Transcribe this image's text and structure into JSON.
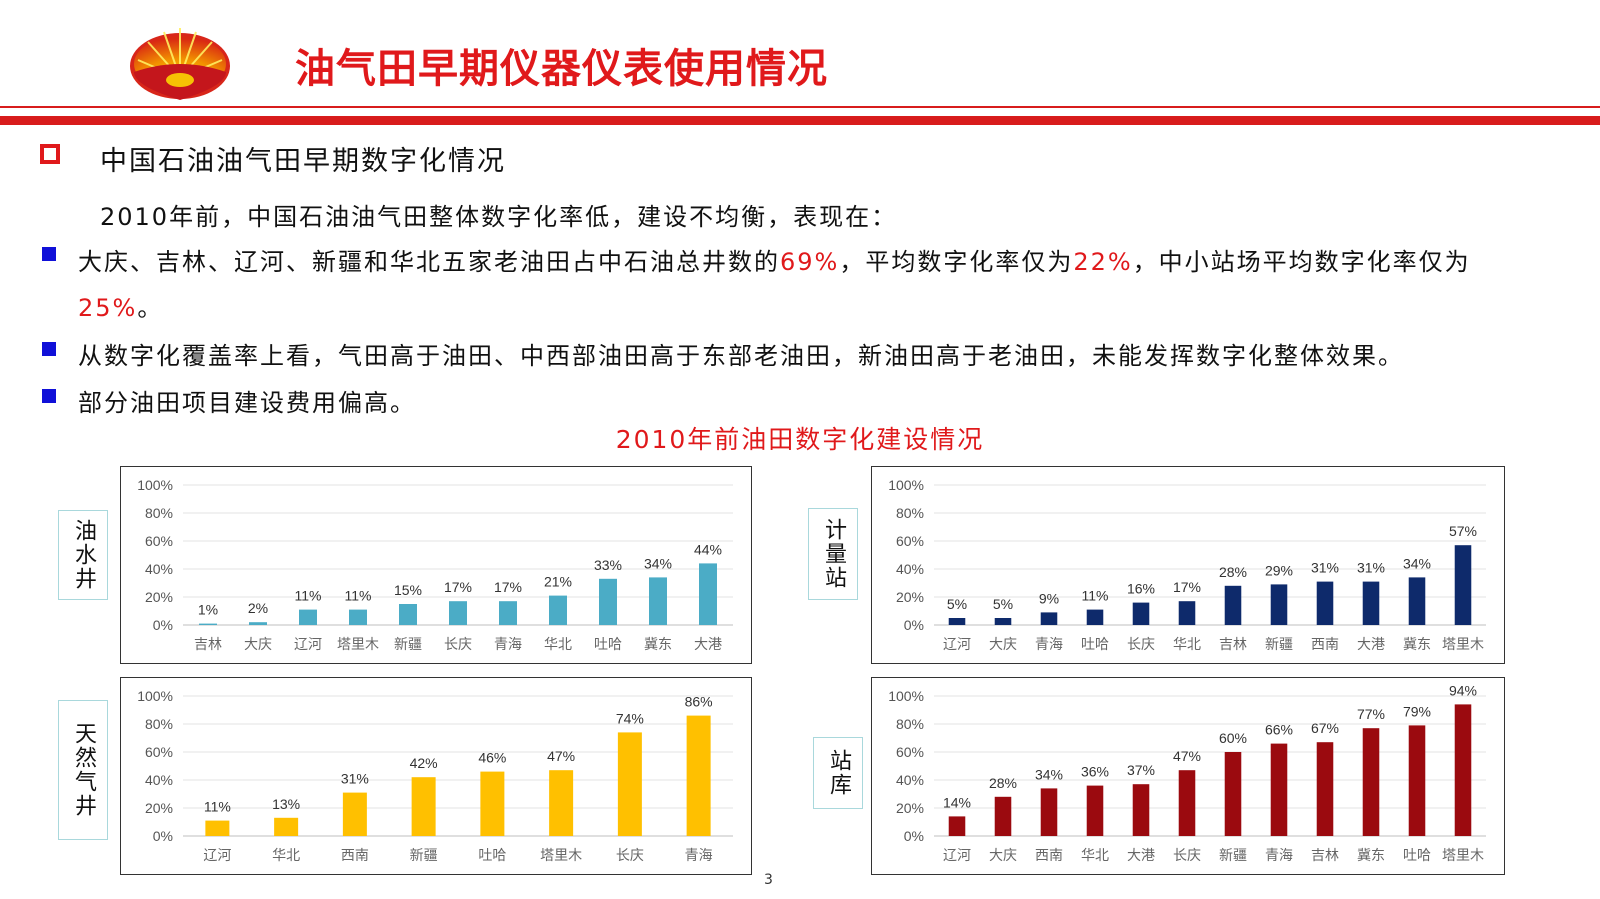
{
  "header": {
    "title": "油气田早期仪器仪表使用情况",
    "logo_icon": "petrochina-logo-icon",
    "accent_color": "#e0191b"
  },
  "section": {
    "title": "中国石油油气田早期数字化情况",
    "intro": "2010年前，中国石油油气田整体数字化率低，建设不均衡，表现在："
  },
  "bullets": [
    {
      "p1": "大庆、吉林、辽河、新疆和华北五家老油田占中石油总井数的",
      "h1": "69%",
      "p2": "，平均数字化率仅为",
      "h2": "22%",
      "p3": "，中小站场平均数字化率仅为",
      "h3": "25%",
      "p4": "。"
    },
    {
      "text": "从数字化覆盖率上看，气田高于油田、中西部油田高于东部老油田，新油田高于老油田，未能发挥数字化整体效果。"
    },
    {
      "text": "部分油田项目建设费用偏高。"
    }
  ],
  "charts_title": "2010年前油田数字化建设情况",
  "page_number": "3",
  "chart_data": [
    {
      "type": "bar",
      "label": "油水井",
      "color": "#4bacc6",
      "categories": [
        "吉林",
        "大庆",
        "辽河",
        "塔里木",
        "新疆",
        "长庆",
        "青海",
        "华北",
        "吐哈",
        "冀东",
        "大港"
      ],
      "values": [
        1,
        2,
        11,
        11,
        15,
        17,
        17,
        21,
        33,
        34,
        44
      ],
      "value_labels": [
        "1%",
        "2%",
        "11%",
        "11%",
        "15%",
        "17%",
        "17%",
        "21%",
        "33%",
        "34%",
        "44%"
      ],
      "yticks": [
        "0%",
        "20%",
        "40%",
        "60%",
        "80%",
        "100%"
      ],
      "ylim": [
        0,
        100
      ],
      "grid": true
    },
    {
      "type": "bar",
      "label": "计量站",
      "color": "#0e2a6b",
      "categories": [
        "辽河",
        "大庆",
        "青海",
        "吐哈",
        "长庆",
        "华北",
        "吉林",
        "新疆",
        "西南",
        "大港",
        "冀东",
        "塔里木"
      ],
      "values": [
        5,
        5,
        9,
        11,
        16,
        17,
        28,
        29,
        31,
        31,
        34,
        57
      ],
      "value_labels": [
        "5%",
        "5%",
        "9%",
        "11%",
        "16%",
        "17%",
        "28%",
        "29%",
        "31%",
        "31%",
        "34%",
        "57%"
      ],
      "yticks": [
        "0%",
        "20%",
        "40%",
        "60%",
        "80%",
        "100%"
      ],
      "ylim": [
        0,
        100
      ],
      "grid": true
    },
    {
      "type": "bar",
      "label": "天然气井",
      "color": "#ffc000",
      "categories": [
        "辽河",
        "华北",
        "西南",
        "新疆",
        "吐哈",
        "塔里木",
        "长庆",
        "青海"
      ],
      "values": [
        11,
        13,
        31,
        42,
        46,
        47,
        74,
        86
      ],
      "value_labels": [
        "11%",
        "13%",
        "31%",
        "42%",
        "46%",
        "47%",
        "74%",
        "86%"
      ],
      "yticks": [
        "0%",
        "20%",
        "40%",
        "60%",
        "80%",
        "100%"
      ],
      "ylim": [
        0,
        100
      ],
      "grid": true
    },
    {
      "type": "bar",
      "label": "站库",
      "color": "#9b0a0f",
      "categories": [
        "辽河",
        "大庆",
        "西南",
        "华北",
        "大港",
        "长庆",
        "新疆",
        "青海",
        "吉林",
        "冀东",
        "吐哈",
        "塔里木"
      ],
      "values": [
        14,
        28,
        34,
        36,
        37,
        47,
        60,
        66,
        67,
        77,
        79,
        94
      ],
      "value_labels": [
        "14%",
        "28%",
        "34%",
        "36%",
        "37%",
        "47%",
        "60%",
        "66%",
        "67%",
        "77%",
        "79%",
        "94%"
      ],
      "yticks": [
        "0%",
        "20%",
        "40%",
        "60%",
        "80%",
        "100%"
      ],
      "ylim": [
        0,
        100
      ],
      "grid": true
    }
  ]
}
